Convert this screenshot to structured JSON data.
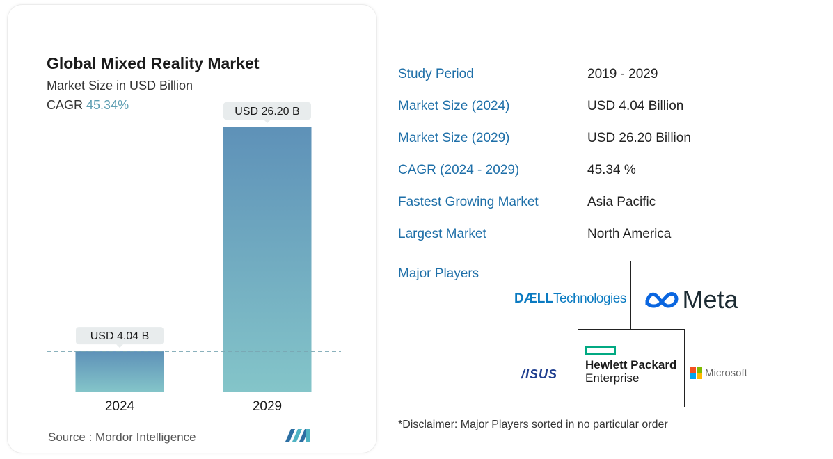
{
  "chart": {
    "title": "Global Mixed Reality Market",
    "subtitle": "Market Size in USD Billion",
    "cagr_label": "CAGR",
    "cagr_value": "45.34%",
    "source": "Source :  Mordor Intelligence"
  },
  "chart_data": {
    "type": "bar",
    "title": "Global Mixed Reality Market",
    "ylabel": "Market Size in USD Billion",
    "categories": [
      "2024",
      "2029"
    ],
    "values": [
      4.04,
      26.2
    ],
    "data_labels": [
      "USD 4.04 B",
      "USD 26.20 B"
    ],
    "ylim": [
      0,
      26.2
    ],
    "reference_line": 4.04,
    "colors": {
      "top": "#5e91b8",
      "bottom": "#84c5c9",
      "label_bg": "#e8eced",
      "dash": "#7aa6b3"
    }
  },
  "facts": [
    {
      "label": "Study Period",
      "value": "2019 - 2029"
    },
    {
      "label": "Market Size (2024)",
      "value": "USD 4.04 Billion"
    },
    {
      "label": "Market Size (2029)",
      "value": "USD 26.20 Billion"
    },
    {
      "label": "CAGR (2024 - 2029)",
      "value": "45.34 %"
    },
    {
      "label": "Fastest Growing Market",
      "value": "Asia Pacific"
    },
    {
      "label": "Largest Market",
      "value": "North America"
    }
  ],
  "players": {
    "label": "Major Players",
    "dell": {
      "brand": "DÆLL",
      "suffix": "Technologies"
    },
    "meta": {
      "name": "Meta"
    },
    "asus": {
      "name": "/ISUS"
    },
    "hpe": {
      "line1": "Hewlett Packard",
      "line2": "Enterprise"
    },
    "microsoft": {
      "name": "Microsoft"
    }
  },
  "disclaimer": "*Disclaimer: Major Players sorted in no particular order",
  "colors": {
    "accent": "#1e6fa8",
    "cagr": "#5f9fb3",
    "hpe_green": "#01a982"
  }
}
